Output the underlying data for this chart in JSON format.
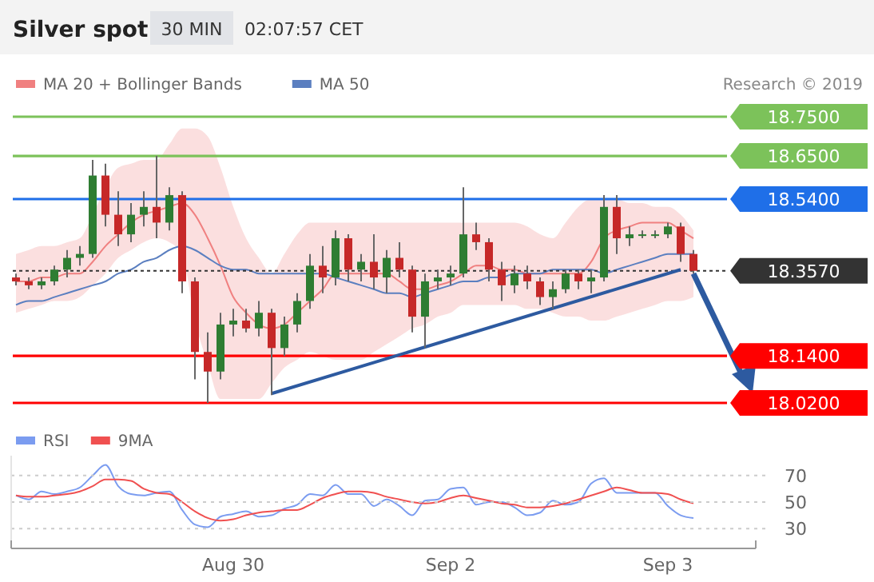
{
  "chart_data": [
    {
      "type": "candlestick",
      "title": "Silver spot",
      "annotations": [
        "30 MIN",
        "02:07:57 CET",
        "Research © 2019"
      ],
      "legend": "top left",
      "tick_labels": "y",
      "categories": [
        null,
        null,
        null,
        null,
        null,
        null,
        null,
        null,
        null,
        null,
        null,
        null,
        null,
        null,
        null,
        null,
        null,
        null,
        null,
        null,
        null,
        null,
        null,
        null,
        null,
        null,
        null,
        null,
        null,
        null,
        null,
        null,
        null,
        null,
        null,
        null,
        null,
        null,
        null,
        null,
        null,
        null,
        null,
        null,
        null,
        null,
        null,
        null,
        null,
        null,
        null,
        null,
        null,
        null
      ],
      "ylim": [
        18.02,
        18.75
      ],
      "yticks": [
        {
          "value": 18.75,
          "label": "18.7500"
        },
        {
          "value": 18.65,
          "label": "18.6500"
        },
        {
          "value": 18.54,
          "label": "18.5400"
        },
        {
          "value": 18.357,
          "label": "18.3570"
        },
        {
          "value": 18.14,
          "label": "18.1400"
        },
        {
          "value": 18.02,
          "label": "18.0200"
        }
      ],
      "ohlc": [
        [
          18.34,
          18.35,
          18.32,
          18.33
        ],
        [
          18.33,
          18.34,
          18.31,
          18.32
        ],
        [
          18.32,
          18.34,
          18.31,
          18.33
        ],
        [
          18.33,
          18.37,
          18.32,
          18.36
        ],
        [
          18.36,
          18.41,
          18.34,
          18.39
        ],
        [
          18.39,
          18.42,
          18.37,
          18.4
        ],
        [
          18.4,
          18.64,
          18.39,
          18.6
        ],
        [
          18.6,
          18.63,
          18.47,
          18.5
        ],
        [
          18.5,
          18.56,
          18.42,
          18.45
        ],
        [
          18.45,
          18.53,
          18.43,
          18.5
        ],
        [
          18.5,
          18.56,
          18.47,
          18.52
        ],
        [
          18.52,
          18.65,
          18.44,
          18.48
        ],
        [
          18.48,
          18.57,
          18.46,
          18.55
        ],
        [
          18.55,
          18.56,
          18.3,
          18.33
        ],
        [
          18.33,
          18.34,
          18.08,
          18.15
        ],
        [
          18.15,
          18.2,
          18.02,
          18.1
        ],
        [
          18.1,
          18.25,
          18.08,
          18.22
        ],
        [
          18.22,
          18.26,
          18.19,
          18.23
        ],
        [
          18.23,
          18.26,
          18.2,
          18.21
        ],
        [
          18.21,
          18.28,
          18.19,
          18.25
        ],
        [
          18.25,
          18.26,
          18.04,
          18.16
        ],
        [
          18.16,
          18.24,
          18.14,
          18.22
        ],
        [
          18.22,
          18.3,
          18.2,
          18.28
        ],
        [
          18.28,
          18.4,
          18.26,
          18.37
        ],
        [
          18.37,
          18.42,
          18.3,
          18.34
        ],
        [
          18.34,
          18.46,
          18.32,
          18.44
        ],
        [
          18.44,
          18.45,
          18.33,
          18.36
        ],
        [
          18.36,
          18.4,
          18.33,
          18.38
        ],
        [
          18.38,
          18.45,
          18.31,
          18.34
        ],
        [
          18.34,
          18.41,
          18.3,
          18.39
        ],
        [
          18.39,
          18.43,
          18.34,
          18.36
        ],
        [
          18.36,
          18.37,
          18.2,
          18.24
        ],
        [
          18.24,
          18.35,
          18.16,
          18.33
        ],
        [
          18.33,
          18.36,
          18.31,
          18.34
        ],
        [
          18.34,
          18.37,
          18.32,
          18.35
        ],
        [
          18.35,
          18.57,
          18.34,
          18.45
        ],
        [
          18.45,
          18.48,
          18.41,
          18.43
        ],
        [
          18.43,
          18.44,
          18.33,
          18.36
        ],
        [
          18.36,
          18.38,
          18.28,
          18.32
        ],
        [
          18.32,
          18.37,
          18.3,
          18.35
        ],
        [
          18.35,
          18.37,
          18.31,
          18.33
        ],
        [
          18.33,
          18.34,
          18.27,
          18.29
        ],
        [
          18.29,
          18.33,
          18.26,
          18.31
        ],
        [
          18.31,
          18.36,
          18.3,
          18.35
        ],
        [
          18.35,
          18.36,
          18.31,
          18.33
        ],
        [
          18.33,
          18.36,
          18.3,
          18.34
        ],
        [
          18.34,
          18.55,
          18.33,
          18.52
        ],
        [
          18.52,
          18.55,
          18.4,
          18.44
        ],
        [
          18.44,
          18.47,
          18.42,
          18.45
        ],
        [
          18.45,
          18.46,
          18.44,
          18.45
        ],
        [
          18.45,
          18.46,
          18.44,
          18.45
        ],
        [
          18.45,
          18.48,
          18.44,
          18.47
        ],
        [
          18.47,
          18.48,
          18.38,
          18.4
        ],
        [
          18.4,
          18.41,
          18.35,
          18.357
        ]
      ],
      "series": [
        {
          "type": "line",
          "name": "MA 20 + Bollinger Bands",
          "color": "#f08080",
          "values": [
            18.33,
            18.33,
            18.34,
            18.34,
            18.35,
            18.35,
            18.38,
            18.42,
            18.45,
            18.48,
            18.5,
            18.51,
            18.52,
            18.53,
            18.5,
            18.44,
            18.37,
            18.29,
            18.25,
            18.22,
            18.21,
            18.22,
            18.25,
            18.28,
            18.31,
            18.35,
            18.35,
            18.35,
            18.35,
            18.35,
            18.33,
            18.31,
            18.31,
            18.32,
            18.33,
            18.35,
            18.37,
            18.37,
            18.36,
            18.36,
            18.35,
            18.35,
            18.35,
            18.35,
            18.35,
            18.38,
            18.44,
            18.46,
            18.47,
            18.48,
            18.48,
            18.48,
            18.46,
            18.44
          ],
          "upper": [
            18.4,
            18.41,
            18.42,
            18.42,
            18.43,
            18.44,
            18.5,
            18.57,
            18.62,
            18.63,
            18.64,
            18.64,
            18.68,
            18.72,
            18.72,
            18.7,
            18.62,
            18.52,
            18.44,
            18.39,
            18.35,
            18.4,
            18.45,
            18.48,
            18.48,
            18.48,
            18.48,
            18.48,
            18.48,
            18.48,
            18.48,
            18.48,
            18.48,
            18.48,
            18.48,
            18.48,
            18.48,
            18.48,
            18.48,
            18.48,
            18.47,
            18.45,
            18.44,
            18.48,
            18.52,
            18.54,
            18.54,
            18.54,
            18.53,
            18.53,
            18.52,
            18.52,
            18.5,
            18.46
          ],
          "lower": [
            18.25,
            18.26,
            18.27,
            18.28,
            18.28,
            18.29,
            18.32,
            18.35,
            18.39,
            18.41,
            18.43,
            18.44,
            18.43,
            18.4,
            18.23,
            18.12,
            18.03,
            18.03,
            18.03,
            18.03,
            18.07,
            18.11,
            18.13,
            18.15,
            18.14,
            18.13,
            18.13,
            18.13,
            18.15,
            18.17,
            18.19,
            18.21,
            18.22,
            18.24,
            18.25,
            18.27,
            18.27,
            18.27,
            18.27,
            18.27,
            18.26,
            18.26,
            18.25,
            18.24,
            18.24,
            18.23,
            18.23,
            18.24,
            18.25,
            18.26,
            18.27,
            18.28,
            18.28,
            18.29
          ]
        },
        {
          "type": "line",
          "name": "MA 50",
          "color": "#5b7fc0",
          "values": [
            18.27,
            18.28,
            18.28,
            18.29,
            18.3,
            18.31,
            18.32,
            18.33,
            18.35,
            18.36,
            18.38,
            18.39,
            18.41,
            18.42,
            18.41,
            18.39,
            18.37,
            18.36,
            18.36,
            18.35,
            18.35,
            18.35,
            18.35,
            18.35,
            18.35,
            18.34,
            18.33,
            18.32,
            18.31,
            18.3,
            18.3,
            18.29,
            18.3,
            18.31,
            18.32,
            18.33,
            18.33,
            18.34,
            18.34,
            18.35,
            18.35,
            18.35,
            18.36,
            18.36,
            18.36,
            18.36,
            18.35,
            18.36,
            18.37,
            18.38,
            18.39,
            18.4,
            18.4,
            18.4
          ]
        },
        {
          "type": "line",
          "color": "#2d5aa0",
          "values": [
            null,
            null,
            null,
            null,
            null,
            null,
            null,
            null,
            null,
            null,
            null,
            null,
            null,
            null,
            null,
            null,
            null,
            null,
            null,
            null,
            18.044,
            null,
            null,
            null,
            null,
            null,
            null,
            null,
            null,
            null,
            null,
            null,
            null,
            null,
            null,
            null,
            null,
            null,
            null,
            null,
            null,
            null,
            null,
            null,
            null,
            null,
            null,
            null,
            null,
            null,
            null,
            null,
            18.36,
            null
          ]
        }
      ],
      "ref_lines": [
        {
          "axis": "y",
          "value": 18.75,
          "color": "#7cc25a",
          "line_style": "solid"
        },
        {
          "axis": "y",
          "value": 18.65,
          "color": "#7cc25a",
          "line_style": "solid"
        },
        {
          "axis": "y",
          "value": 18.54,
          "color": "#1f6fe8",
          "line_style": "solid"
        },
        {
          "axis": "y",
          "value": 18.357,
          "color": "#333333",
          "line_style": "dotted"
        },
        {
          "axis": "y",
          "value": 18.14,
          "color": "#ff0000",
          "line_style": "solid"
        },
        {
          "axis": "y",
          "value": 18.02,
          "color": "#ff0000",
          "line_style": "solid"
        }
      ]
    },
    {
      "type": "line",
      "legend": "top left",
      "grid": "y",
      "line_style": "solid",
      "marker": "none",
      "categories": [
        null,
        null,
        null,
        null,
        null,
        null,
        null,
        null,
        null,
        null,
        null,
        null,
        null,
        null,
        null,
        null,
        null,
        "Aug 30",
        null,
        null,
        null,
        null,
        null,
        null,
        null,
        null,
        null,
        null,
        null,
        null,
        null,
        null,
        null,
        null,
        "Sep 2",
        null,
        null,
        null,
        null,
        null,
        null,
        null,
        null,
        null,
        null,
        null,
        null,
        null,
        null,
        null,
        null,
        "Sep 3",
        null,
        null
      ],
      "ylim": [
        15,
        85
      ],
      "yticks": [
        30,
        50,
        70
      ],
      "series": [
        {
          "name": "RSI",
          "color": "#7b9cf0",
          "values": [
            55,
            52,
            58,
            56,
            58,
            61,
            70,
            78,
            62,
            56,
            55,
            57,
            58,
            44,
            33,
            31,
            39,
            41,
            43,
            39,
            40,
            45,
            48,
            56,
            55,
            63,
            56,
            56,
            47,
            52,
            47,
            40,
            51,
            52,
            60,
            61,
            48,
            50,
            50,
            46,
            40,
            42,
            51,
            48,
            50,
            64,
            68,
            57,
            57,
            57,
            57,
            47,
            40,
            38
          ]
        },
        {
          "name": "9MA",
          "color": "#f05050",
          "values": [
            55,
            54,
            54,
            55,
            56,
            58,
            62,
            67,
            67,
            66,
            60,
            57,
            56,
            50,
            43,
            38,
            36,
            37,
            40,
            42,
            43,
            44,
            44,
            48,
            53,
            56,
            58,
            58,
            57,
            54,
            52,
            50,
            49,
            50,
            53,
            55,
            53,
            51,
            49,
            48,
            46,
            46,
            47,
            49,
            52,
            55,
            58,
            61,
            59,
            57,
            57,
            56,
            52,
            49
          ]
        }
      ]
    }
  ]
}
